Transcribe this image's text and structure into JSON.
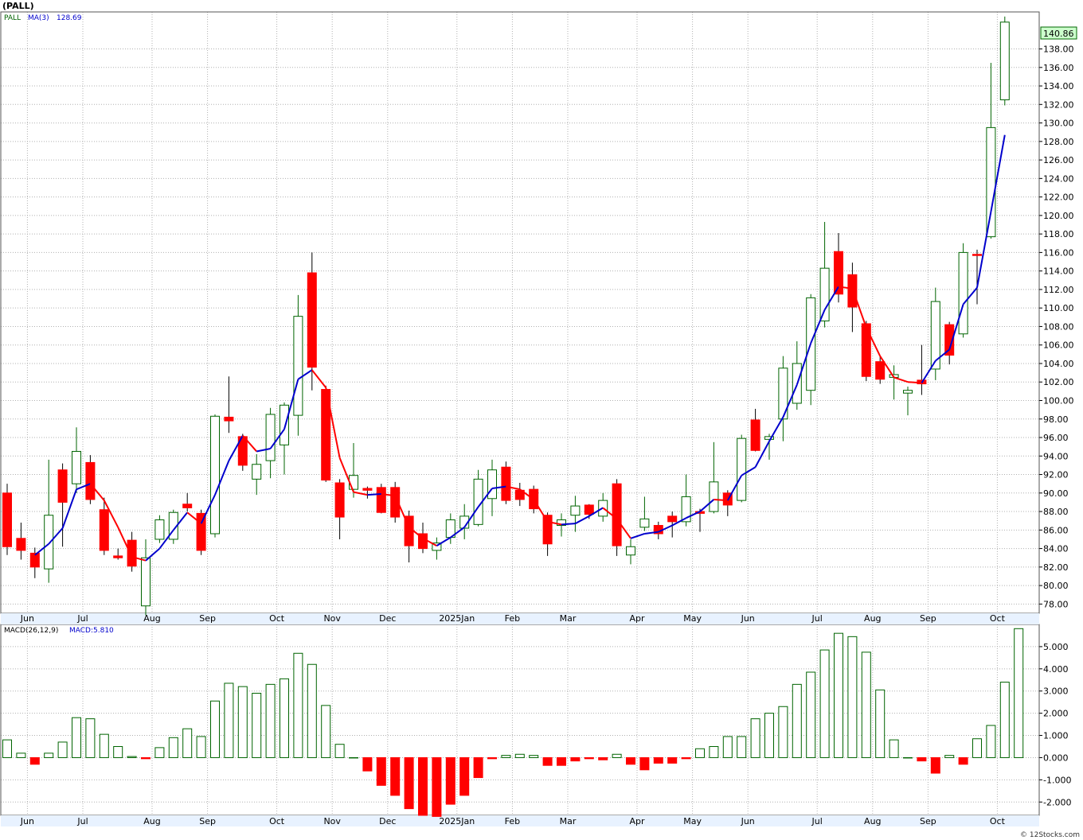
{
  "title": "(PALL)",
  "legend": {
    "symbol": "PALL",
    "ma_label": "MA(3)",
    "ma_value": "128.69"
  },
  "macd_legend": {
    "label": "MACD(26,12,9)",
    "value_label": "MACD:5.810"
  },
  "last_price_tag": "140.86",
  "footer": "© 12Stocks.com",
  "colors": {
    "up": "#006400",
    "down": "#ff0000",
    "ma_up": "#0000cc",
    "ma_down": "#ff0000",
    "grid": "#b0b0b0",
    "tag_bg": "#ccffcc"
  },
  "chart_data": [
    {
      "type": "candlestick",
      "title": "(PALL)",
      "ylim": [
        77,
        142
      ],
      "y_ticks": [
        78,
        80,
        82,
        84,
        86,
        88,
        90,
        92,
        94,
        96,
        98,
        100,
        102,
        104,
        106,
        108,
        110,
        112,
        114,
        116,
        118,
        120,
        122,
        124,
        126,
        128,
        130,
        132,
        134,
        136,
        138
      ],
      "y_tick_labels": [
        "78.00",
        "80.00",
        "82.00",
        "84.00",
        "86.00",
        "88.00",
        "90.00",
        "92.00",
        "94.00",
        "96.00",
        "98.00",
        "100.00",
        "102.00",
        "104.00",
        "106.00",
        "108.00",
        "110.00",
        "112.00",
        "114.00",
        "116.00",
        "118.00",
        "120.00",
        "122.00",
        "124.00",
        "126.00",
        "128.00",
        "130.00",
        "132.00",
        "134.00",
        "136.00",
        "138.00"
      ],
      "x_labels": [
        {
          "i": 1,
          "label": "Jun"
        },
        {
          "i": 5,
          "label": "Jul"
        },
        {
          "i": 10,
          "label": "Aug"
        },
        {
          "i": 14,
          "label": "Sep"
        },
        {
          "i": 19,
          "label": "Oct"
        },
        {
          "i": 23,
          "label": "Nov"
        },
        {
          "i": 27,
          "label": "Dec"
        },
        {
          "i": 32,
          "label": "2025Jan"
        },
        {
          "i": 36,
          "label": "Feb"
        },
        {
          "i": 40,
          "label": "Mar"
        },
        {
          "i": 45,
          "label": "Apr"
        },
        {
          "i": 49,
          "label": "May"
        },
        {
          "i": 53,
          "label": "Jun"
        },
        {
          "i": 58,
          "label": "Jul"
        },
        {
          "i": 62,
          "label": "Aug"
        },
        {
          "i": 66,
          "label": "Sep"
        },
        {
          "i": 71,
          "label": "Oct"
        }
      ],
      "grid": true,
      "candles": [
        {
          "o": 90,
          "h": 91,
          "l": 83.3,
          "c": 84.2
        },
        {
          "o": 85.1,
          "h": 86.8,
          "l": 82.8,
          "c": 83.8
        },
        {
          "o": 83.5,
          "h": 84.1,
          "l": 80.8,
          "c": 82
        },
        {
          "o": 81.8,
          "h": 93.6,
          "l": 80.3,
          "c": 87.6
        },
        {
          "o": 92.5,
          "h": 93.2,
          "l": 84.2,
          "c": 89
        },
        {
          "o": 91,
          "h": 97.1,
          "l": 90,
          "c": 94.5
        },
        {
          "o": 93.3,
          "h": 94.1,
          "l": 88.8,
          "c": 89.3
        },
        {
          "o": 88.2,
          "h": 89.5,
          "l": 83.3,
          "c": 83.8
        },
        {
          "o": 83.2,
          "h": 84,
          "l": 82.8,
          "c": 83
        },
        {
          "o": 84.9,
          "h": 85.8,
          "l": 81.5,
          "c": 82.1
        },
        {
          "o": 77.8,
          "h": 85,
          "l": 76.8,
          "c": 83
        },
        {
          "o": 85,
          "h": 87.6,
          "l": 84.6,
          "c": 87.1
        },
        {
          "o": 85,
          "h": 88.2,
          "l": 84.5,
          "c": 87.9
        },
        {
          "o": 88.8,
          "h": 90,
          "l": 88,
          "c": 88.4
        },
        {
          "o": 87.8,
          "h": 88.2,
          "l": 83.3,
          "c": 83.8
        },
        {
          "o": 85.6,
          "h": 98.5,
          "l": 85.2,
          "c": 98.3
        },
        {
          "o": 98.2,
          "h": 102.6,
          "l": 96.5,
          "c": 97.8
        },
        {
          "o": 96.1,
          "h": 96.4,
          "l": 92.4,
          "c": 93
        },
        {
          "o": 91.5,
          "h": 94.2,
          "l": 89.8,
          "c": 93.1
        },
        {
          "o": 93.5,
          "h": 99.2,
          "l": 91.6,
          "c": 98.5
        },
        {
          "o": 95.2,
          "h": 99.8,
          "l": 92,
          "c": 99.5
        },
        {
          "o": 98.4,
          "h": 111.4,
          "l": 96.2,
          "c": 109.1
        },
        {
          "o": 113.8,
          "h": 116,
          "l": 101.1,
          "c": 103.6
        },
        {
          "o": 101.2,
          "h": 101.6,
          "l": 91.2,
          "c": 91.4
        },
        {
          "o": 91.1,
          "h": 91.5,
          "l": 85,
          "c": 87.4
        },
        {
          "o": 90.4,
          "h": 95.4,
          "l": 89.5,
          "c": 91.9
        },
        {
          "o": 90.5,
          "h": 90.7,
          "l": 89.4,
          "c": 90.3
        },
        {
          "o": 90.6,
          "h": 91,
          "l": 87.8,
          "c": 87.9
        },
        {
          "o": 90.6,
          "h": 91.2,
          "l": 86.8,
          "c": 87.4
        },
        {
          "o": 87.5,
          "h": 88.1,
          "l": 82.5,
          "c": 84.3
        },
        {
          "o": 85.6,
          "h": 86.8,
          "l": 83.5,
          "c": 84
        },
        {
          "o": 83.8,
          "h": 85.2,
          "l": 82.8,
          "c": 84.6
        },
        {
          "o": 85.2,
          "h": 87.8,
          "l": 84.5,
          "c": 87.1
        },
        {
          "o": 86.2,
          "h": 88.8,
          "l": 85,
          "c": 87.5
        },
        {
          "o": 86.6,
          "h": 92.5,
          "l": 86.4,
          "c": 91.5
        },
        {
          "o": 89.4,
          "h": 93.6,
          "l": 87.5,
          "c": 92.5
        },
        {
          "o": 92.8,
          "h": 93.4,
          "l": 88.8,
          "c": 89.2
        },
        {
          "o": 90.3,
          "h": 91.1,
          "l": 88.6,
          "c": 89.3
        },
        {
          "o": 90.4,
          "h": 90.8,
          "l": 87.8,
          "c": 88.3
        },
        {
          "o": 87.6,
          "h": 87.9,
          "l": 83.2,
          "c": 84.5
        },
        {
          "o": 86.5,
          "h": 87.8,
          "l": 85.3,
          "c": 87.1
        },
        {
          "o": 87.6,
          "h": 89.7,
          "l": 85.8,
          "c": 88.6
        },
        {
          "o": 88.7,
          "h": 88.8,
          "l": 87.2,
          "c": 87.7
        },
        {
          "o": 87.5,
          "h": 90,
          "l": 86.9,
          "c": 89.2
        },
        {
          "o": 91,
          "h": 91.5,
          "l": 83.2,
          "c": 84.3
        },
        {
          "o": 83.3,
          "h": 85,
          "l": 82.3,
          "c": 84.2
        },
        {
          "o": 86.3,
          "h": 89.6,
          "l": 85.9,
          "c": 87.2
        },
        {
          "o": 86.5,
          "h": 86.9,
          "l": 85,
          "c": 85.6
        },
        {
          "o": 87.5,
          "h": 88,
          "l": 85.2,
          "c": 86.9
        },
        {
          "o": 86.9,
          "h": 92,
          "l": 86.4,
          "c": 89.6
        },
        {
          "o": 88,
          "h": 88.3,
          "l": 85.8,
          "c": 87.8
        },
        {
          "o": 88,
          "h": 95.5,
          "l": 87.8,
          "c": 91.2
        },
        {
          "o": 90,
          "h": 90.3,
          "l": 87.5,
          "c": 88.7
        },
        {
          "o": 89.2,
          "h": 96.3,
          "l": 89,
          "c": 95.9
        },
        {
          "o": 97.9,
          "h": 99.1,
          "l": 94.5,
          "c": 94.6
        },
        {
          "o": 95.8,
          "h": 96.4,
          "l": 93.6,
          "c": 96.1
        },
        {
          "o": 98,
          "h": 104.8,
          "l": 95.6,
          "c": 103.5
        },
        {
          "o": 99.7,
          "h": 106.4,
          "l": 99,
          "c": 104
        },
        {
          "o": 101.1,
          "h": 111.5,
          "l": 99.5,
          "c": 111.1
        },
        {
          "o": 108.6,
          "h": 119.3,
          "l": 107.9,
          "c": 114.3
        },
        {
          "o": 116.1,
          "h": 118.1,
          "l": 110.6,
          "c": 111.5
        },
        {
          "o": 113.6,
          "h": 114.9,
          "l": 107.4,
          "c": 110.1
        },
        {
          "o": 108.3,
          "h": 108.6,
          "l": 102.1,
          "c": 102.6
        },
        {
          "o": 104.2,
          "h": 104.8,
          "l": 101.8,
          "c": 102.3
        },
        {
          "o": 102.5,
          "h": 103.8,
          "l": 100.1,
          "c": 102.8
        },
        {
          "o": 100.8,
          "h": 101.5,
          "l": 98.4,
          "c": 101.1
        },
        {
          "o": 102.2,
          "h": 106,
          "l": 100.6,
          "c": 101.8
        },
        {
          "o": 103.4,
          "h": 112.2,
          "l": 102.2,
          "c": 110.7
        },
        {
          "o": 108.2,
          "h": 108.5,
          "l": 103.9,
          "c": 104.9
        },
        {
          "o": 107.2,
          "h": 117,
          "l": 106.8,
          "c": 116
        },
        {
          "o": 115.8,
          "h": 116.3,
          "l": 110.4,
          "c": 115.7
        },
        {
          "o": 117.7,
          "h": 136.5,
          "l": 117.5,
          "c": 129.5
        },
        {
          "o": 132.5,
          "h": 141.5,
          "l": 131.9,
          "c": 140.9
        }
      ],
      "ma_series": {
        "name": "MA(3)",
        "values": [
          null,
          null,
          83.3,
          84.5,
          86.2,
          90.4,
          91,
          89.2,
          86.3,
          83.1,
          82.7,
          84,
          86,
          87.9,
          86.7,
          89.8,
          93.5,
          96.2,
          94.5,
          94.8,
          96.9,
          102.3,
          103.3,
          101.4,
          93.8,
          90.1,
          89.8,
          89.9,
          89.7,
          86.3,
          85.1,
          84.3,
          85.2,
          86.3,
          88.5,
          90.5,
          90.7,
          90.4,
          89.3,
          86.9,
          86.6,
          86.7,
          87.5,
          88.4,
          87.2,
          85.1,
          85.6,
          85.8,
          86.5,
          87.3,
          88,
          89.3,
          89.2,
          91.9,
          92.8,
          95.6,
          98.2,
          101.7,
          106.2,
          109.8,
          112.3,
          112.1,
          107.9,
          104.8,
          102.5,
          102,
          101.9,
          104.3,
          105.5,
          110.4,
          112.2,
          120.4,
          128.7
        ]
      }
    },
    {
      "type": "bar",
      "title": "MACD(26,12,9)",
      "ylim": [
        -2.6,
        6
      ],
      "y_ticks": [
        -2,
        -1,
        0,
        1,
        2,
        3,
        4,
        5
      ],
      "y_tick_labels": [
        "-2.000",
        "-1.000",
        "0.000",
        "1.000",
        "2.000",
        "3.000",
        "4.000",
        "5.000"
      ],
      "values": [
        0.8,
        0.2,
        -0.3,
        0.2,
        0.7,
        1.8,
        1.75,
        1.05,
        0.5,
        0.05,
        -0.05,
        0.45,
        0.9,
        1.3,
        0.95,
        2.55,
        3.35,
        3.2,
        2.9,
        3.3,
        3.55,
        4.7,
        4.2,
        2.35,
        0.6,
        0,
        -0.6,
        -1.25,
        -1.7,
        -2.3,
        -2.6,
        -2.65,
        -2.1,
        -1.7,
        -0.9,
        -0.05,
        0.1,
        0.15,
        0.1,
        -0.35,
        -0.35,
        -0.15,
        -0.05,
        -0.1,
        0.15,
        -0.3,
        -0.55,
        -0.25,
        -0.25,
        -0.05,
        0.4,
        0.5,
        0.95,
        0.95,
        1.75,
        2,
        2.3,
        3.3,
        3.85,
        4.85,
        5.6,
        5.45,
        4.75,
        3.05,
        0.8,
        0,
        -0.15,
        -0.7,
        0.1,
        -0.3,
        0.85,
        1.45,
        3.4,
        5.81
      ]
    }
  ]
}
